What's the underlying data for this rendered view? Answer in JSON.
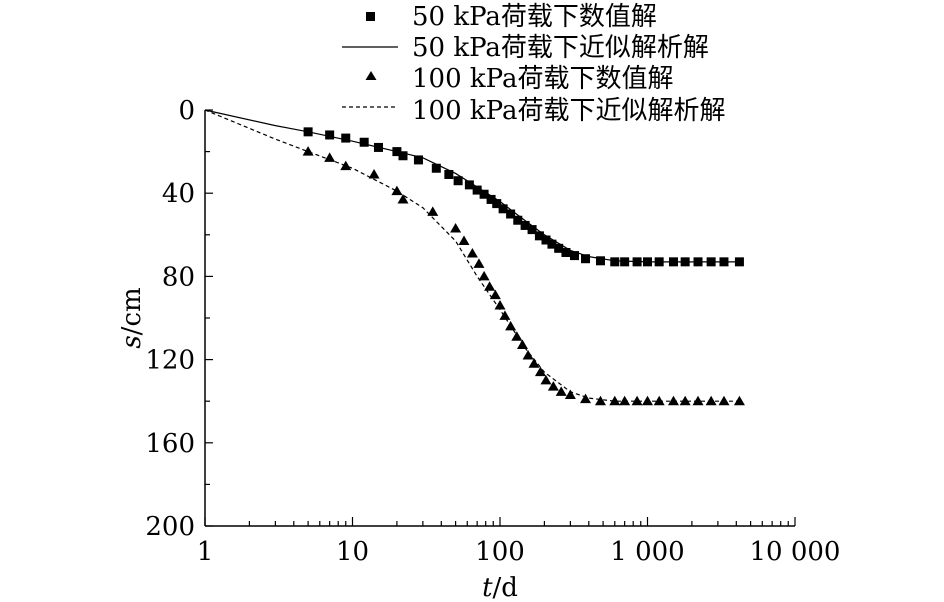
{
  "chart_data": {
    "type": "line",
    "x_scale": "log",
    "y_inverted": true,
    "xlabel_var": "t",
    "xlabel_unit": "/d",
    "ylabel_var": "s",
    "ylabel_unit": "/cm",
    "xlim": [
      1,
      10000
    ],
    "ylim": [
      0,
      200
    ],
    "x_ticks": [
      1,
      10,
      100,
      1000,
      10000
    ],
    "x_tick_labels": [
      "1",
      "10",
      "100",
      "1 000",
      "10 000"
    ],
    "y_ticks": [
      0,
      40,
      80,
      120,
      160,
      200
    ],
    "y_tick_labels": [
      "0",
      "40",
      "80",
      "120",
      "160",
      "200"
    ],
    "grid": false,
    "legend_position": "top",
    "series": [
      {
        "name": "50 kPa荷载下数值解",
        "style": "square-markers",
        "x": [
          5,
          7,
          9,
          12,
          15,
          20,
          22,
          28,
          37,
          45,
          52,
          62,
          70,
          78,
          87,
          95,
          105,
          118,
          132,
          148,
          165,
          185,
          205,
          225,
          250,
          280,
          320,
          380,
          480,
          600,
          700,
          850,
          1000,
          1200,
          1500,
          1800,
          2200,
          2700,
          3300,
          4200
        ],
        "y": [
          10.5,
          12,
          13.5,
          15.5,
          18,
          20,
          22,
          24,
          28,
          31,
          34,
          36,
          38.5,
          40.5,
          43,
          45,
          47.5,
          50,
          53,
          55.5,
          57.5,
          60.5,
          62.5,
          64.5,
          66.5,
          68.5,
          70,
          71.5,
          72.5,
          73,
          73,
          73,
          73,
          73,
          73,
          73,
          73,
          73,
          73,
          73
        ]
      },
      {
        "name": "50 kPa荷载下近似解析解",
        "style": "solid",
        "x": [
          1,
          3,
          5,
          10,
          20,
          30,
          50,
          70,
          100,
          150,
          200,
          300,
          400,
          600,
          1000,
          2000,
          4200
        ],
        "y": [
          0,
          7.5,
          10.5,
          15,
          20,
          23,
          30.5,
          37,
          44,
          53.5,
          60,
          67.5,
          70.5,
          72.5,
          73,
          73,
          73
        ]
      },
      {
        "name": "100 kPa荷载下数值解",
        "style": "triangle-markers",
        "x": [
          5,
          7,
          9,
          14,
          20,
          22,
          35,
          50,
          57,
          65,
          72,
          78,
          85,
          93,
          100,
          108,
          118,
          130,
          142,
          155,
          170,
          188,
          205,
          230,
          260,
          300,
          380,
          480,
          600,
          700,
          850,
          1000,
          1200,
          1500,
          1800,
          2200,
          2700,
          3300,
          4200
        ],
        "y": [
          20,
          23,
          27,
          31,
          39,
          43,
          49,
          57,
          63,
          69,
          74,
          80,
          85,
          89,
          94,
          99,
          104,
          109,
          113,
          118,
          122,
          126,
          130,
          133,
          135.5,
          137,
          139,
          140,
          140,
          140,
          140,
          140,
          140,
          140,
          140,
          140,
          140,
          140,
          140
        ]
      },
      {
        "name": "100 kPa荷载下近似解析解",
        "style": "dashed",
        "x": [
          1,
          3,
          5,
          10,
          20,
          30,
          50,
          70,
          100,
          150,
          200,
          300,
          400,
          600,
          1000,
          2000,
          4200
        ],
        "y": [
          0,
          14,
          20,
          28,
          39,
          47,
          63,
          80,
          96,
          115,
          126,
          135.5,
          138.5,
          140,
          140,
          140,
          140
        ]
      }
    ]
  }
}
